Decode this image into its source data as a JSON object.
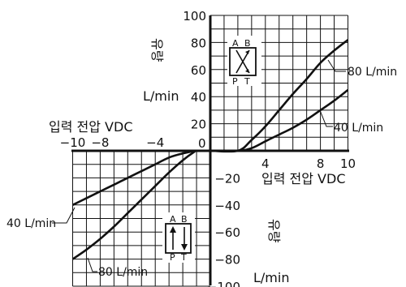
{
  "chart_data": {
    "type": "line",
    "x_axis": {
      "label": "입력 전압 VDC",
      "range": [
        -10,
        10
      ],
      "negative_ticks": [
        "−10",
        "−8",
        "−4"
      ],
      "positive_ticks": [
        "4",
        "8",
        "10"
      ],
      "origin_label": "0"
    },
    "y_axis": {
      "label_text": "유량",
      "unit": "L/min",
      "range": [
        -100,
        100
      ],
      "ticks": [
        100,
        80,
        60,
        40,
        20,
        0,
        -20,
        -40,
        -60,
        -80,
        -100
      ],
      "tick_labels": [
        "100",
        "80",
        "60",
        "40",
        "20",
        "0",
        "−20",
        "−40",
        "−60",
        "−80",
        "−100"
      ]
    },
    "grid": true,
    "series": [
      {
        "name": "80 L/min",
        "x": [
          -10,
          -9,
          -8,
          -7,
          -6,
          -5,
          -4,
          -3,
          -2,
          -1.2,
          -1,
          0,
          2,
          3,
          4,
          5,
          6,
          7,
          8,
          9,
          10
        ],
        "y": [
          -80,
          -73,
          -65,
          -56,
          -46,
          -36,
          -26,
          -16,
          -7,
          -1,
          0,
          0,
          0,
          8,
          18,
          30,
          42,
          53,
          65,
          74,
          82
        ]
      },
      {
        "name": "40 L/min",
        "x": [
          -10,
          -9,
          -8,
          -7,
          -6,
          -5,
          -4,
          -3,
          -2,
          -1,
          0,
          2,
          3,
          4,
          5,
          6,
          7,
          8,
          9,
          10
        ],
        "y": [
          -40,
          -35,
          -30,
          -25,
          -20,
          -15,
          -10,
          -5,
          -2,
          0,
          0,
          0,
          2,
          7,
          12,
          17,
          23,
          30,
          37,
          45
        ]
      }
    ],
    "annotations": {
      "series_label_1": "80 L/min",
      "series_label_2": "40 L/min",
      "valve_ports_top": [
        "A",
        "B"
      ],
      "valve_ports_bottom": [
        "P",
        "T"
      ]
    }
  }
}
